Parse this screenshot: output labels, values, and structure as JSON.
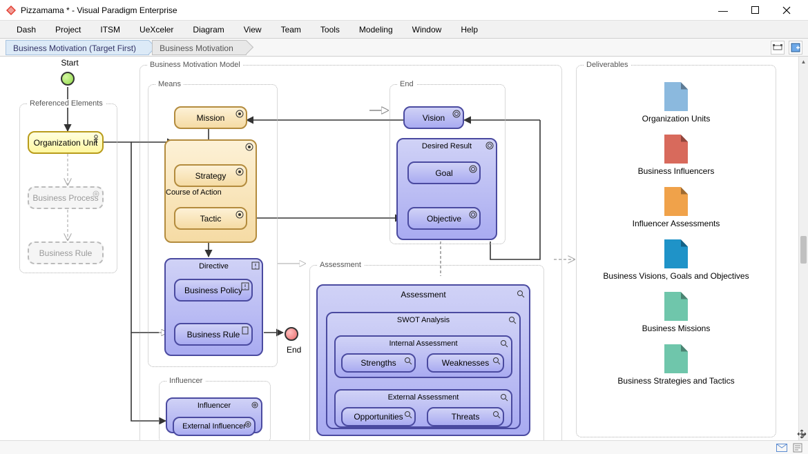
{
  "window": {
    "title": "Pizzamama * - Visual Paradigm Enterprise"
  },
  "menu": [
    "Dash",
    "Project",
    "ITSM",
    "UeXceler",
    "Diagram",
    "View",
    "Team",
    "Tools",
    "Modeling",
    "Window",
    "Help"
  ],
  "breadcrumbs": [
    "Business Motivation (Target First)",
    "Business Motivation"
  ],
  "diagram": {
    "start_label": "Start",
    "end_label": "End",
    "groups": {
      "ref": "Referenced Elements",
      "bmm": "Business Motivation Model",
      "means": "Means",
      "end": "End",
      "directive": "Directive",
      "coa": "Course of Action",
      "desired": "Desired Result",
      "assessment_grp": "Assessment",
      "influencer_grp": "Influencer",
      "deliverables": "Deliverables"
    },
    "nodes": {
      "org_unit": "Organization Unit",
      "biz_process": "Business Process",
      "biz_rule_ref": "Business Rule",
      "mission": "Mission",
      "strategy": "Strategy",
      "tactic": "Tactic",
      "biz_policy": "Business Policy",
      "biz_rule": "Business Rule",
      "vision": "Vision",
      "goal": "Goal",
      "objective": "Objective",
      "assessment": "Assessment",
      "swot": "SWOT Analysis",
      "internal": "Internal Assessment",
      "strengths": "Strengths",
      "weaknesses": "Weaknesses",
      "external": "External Assessment",
      "opportunities": "Opportunities",
      "threats": "Threats",
      "influencer": "Influencer",
      "ext_influencer": "External Influencer"
    },
    "colors": {
      "yellow_fill": "#fff7a0",
      "yellow_border": "#b89b1a",
      "tan_fill": "#f5dba4",
      "tan_border": "#b38b3d",
      "blue_fill": "#b6b8f0",
      "blue_border": "#4a4aa0",
      "bluegrad_fill": "#a9abf1",
      "grey_dashed": "#f3f3f3"
    }
  },
  "deliverables": [
    {
      "label": "Organization Units",
      "color": "#8bb9de"
    },
    {
      "label": "Business Influencers",
      "color": "#d86a5c"
    },
    {
      "label": "Influencer Assessments",
      "color": "#f0a24a"
    },
    {
      "label": "Business Visions, Goals and Objectives",
      "color": "#1f93c8"
    },
    {
      "label": "Business Missions",
      "color": "#6fc6ab"
    },
    {
      "label": "Business Strategies and Tactics",
      "color": "#6fc6ab"
    }
  ]
}
